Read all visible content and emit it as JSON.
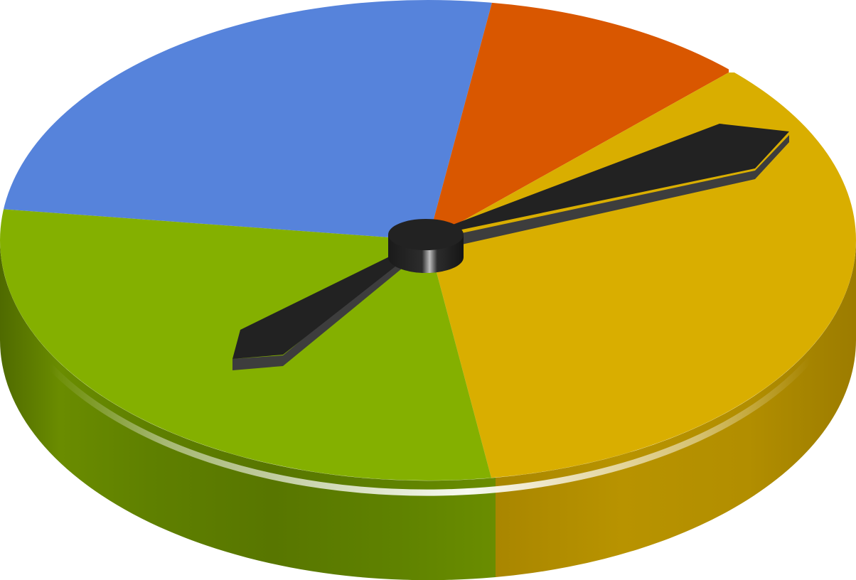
{
  "wheel": {
    "segments": [
      {
        "name": "blue",
        "color": "#5683db"
      },
      {
        "name": "orange",
        "color": "#d95700"
      },
      {
        "name": "yellow",
        "color": "#d9ae00"
      },
      {
        "name": "green",
        "color": "#84b000"
      }
    ],
    "pointer_color": "#222222",
    "pointer_edge_color": "#3d3d3d",
    "side_green_color": "#5c7a00",
    "side_yellow_color": "#b08c00"
  }
}
